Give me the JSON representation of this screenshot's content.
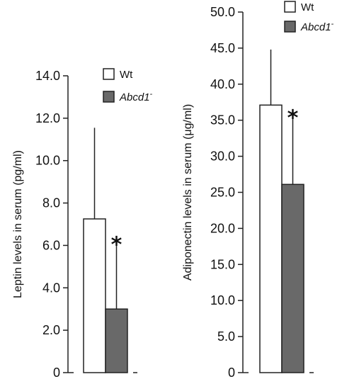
{
  "chart_data": [
    {
      "type": "bar",
      "ylabel": "Leptin levels in serum (pg/ml)",
      "ylim": [
        0,
        14
      ],
      "ytick_labels": [
        "0",
        "2.0",
        "4.0",
        "6.0",
        "8.0",
        "10.0",
        "12.0",
        "14.0"
      ],
      "ytick_values": [
        0,
        2,
        4,
        6,
        8,
        10,
        12,
        14
      ],
      "grid": false,
      "legend_position": "top-right",
      "series": [
        {
          "name": "Wt",
          "value": 7.25,
          "error_upper": 11.55,
          "color": "#ffffff",
          "italic": false,
          "sup": ""
        },
        {
          "name": "Abcd1",
          "sup": "-",
          "value": 3.0,
          "error_upper": 6.1,
          "color": "#696969",
          "italic": true,
          "significance": "*"
        }
      ]
    },
    {
      "type": "bar",
      "ylabel": "Adiponectin levels in serum (μg/ml)",
      "ylim": [
        0,
        50
      ],
      "ytick_labels": [
        "0",
        "5.0",
        "10.0",
        "15.0",
        "20.0",
        "25.0",
        "30.0",
        "35.0",
        "40.0",
        "45.0",
        "50.0"
      ],
      "ytick_values": [
        0,
        5,
        10,
        15,
        20,
        25,
        30,
        35,
        40,
        45,
        50
      ],
      "grid": false,
      "legend_position": "top-right",
      "series": [
        {
          "name": "Wt",
          "value": 37.1,
          "error_upper": 44.8,
          "color": "#ffffff",
          "italic": false,
          "sup": ""
        },
        {
          "name": "Abcd1",
          "sup": "-",
          "value": 26.1,
          "error_upper": 35.5,
          "color": "#696969",
          "italic": true,
          "significance": "*"
        }
      ]
    }
  ]
}
